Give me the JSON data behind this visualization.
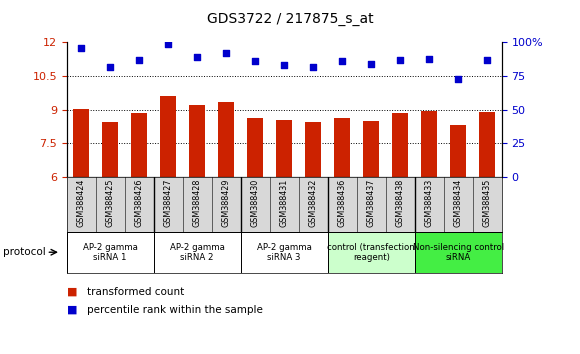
{
  "title": "GDS3722 / 217875_s_at",
  "samples": [
    "GSM388424",
    "GSM388425",
    "GSM388426",
    "GSM388427",
    "GSM388428",
    "GSM388429",
    "GSM388430",
    "GSM388431",
    "GSM388432",
    "GSM388436",
    "GSM388437",
    "GSM388438",
    "GSM388433",
    "GSM388434",
    "GSM388435"
  ],
  "bar_values": [
    9.05,
    8.45,
    8.85,
    9.6,
    9.2,
    9.35,
    8.65,
    8.55,
    8.45,
    8.65,
    8.5,
    8.85,
    8.95,
    8.3,
    8.9
  ],
  "scatter_values": [
    96,
    82,
    87,
    99,
    89,
    92,
    86,
    83,
    82,
    86,
    84,
    87,
    88,
    73,
    87
  ],
  "bar_color": "#cc2200",
  "scatter_color": "#0000cc",
  "ylim_left": [
    6,
    12
  ],
  "ylim_right": [
    0,
    100
  ],
  "yticks_left": [
    6,
    7.5,
    9,
    10.5,
    12
  ],
  "yticks_right": [
    0,
    25,
    50,
    75,
    100
  ],
  "groups": [
    {
      "label": "AP-2 gamma\nsiRNA 1",
      "start": 0,
      "end": 3,
      "color": "#ffffff"
    },
    {
      "label": "AP-2 gamma\nsiRNA 2",
      "start": 3,
      "end": 6,
      "color": "#ffffff"
    },
    {
      "label": "AP-2 gamma\nsiRNA 3",
      "start": 6,
      "end": 9,
      "color": "#ffffff"
    },
    {
      "label": "control (transfection\nreagent)",
      "start": 9,
      "end": 12,
      "color": "#ccffcc"
    },
    {
      "label": "Non-silencing control\nsiRNA",
      "start": 12,
      "end": 15,
      "color": "#44ee44"
    }
  ],
  "protocol_label": "protocol",
  "legend_bar_label": "transformed count",
  "legend_scatter_label": "percentile rank within the sample",
  "background_color": "#ffffff",
  "plot_bg_color": "#ffffff",
  "tick_label_fontsize": 7,
  "title_fontsize": 10,
  "right_axis_percent_label": "100%"
}
